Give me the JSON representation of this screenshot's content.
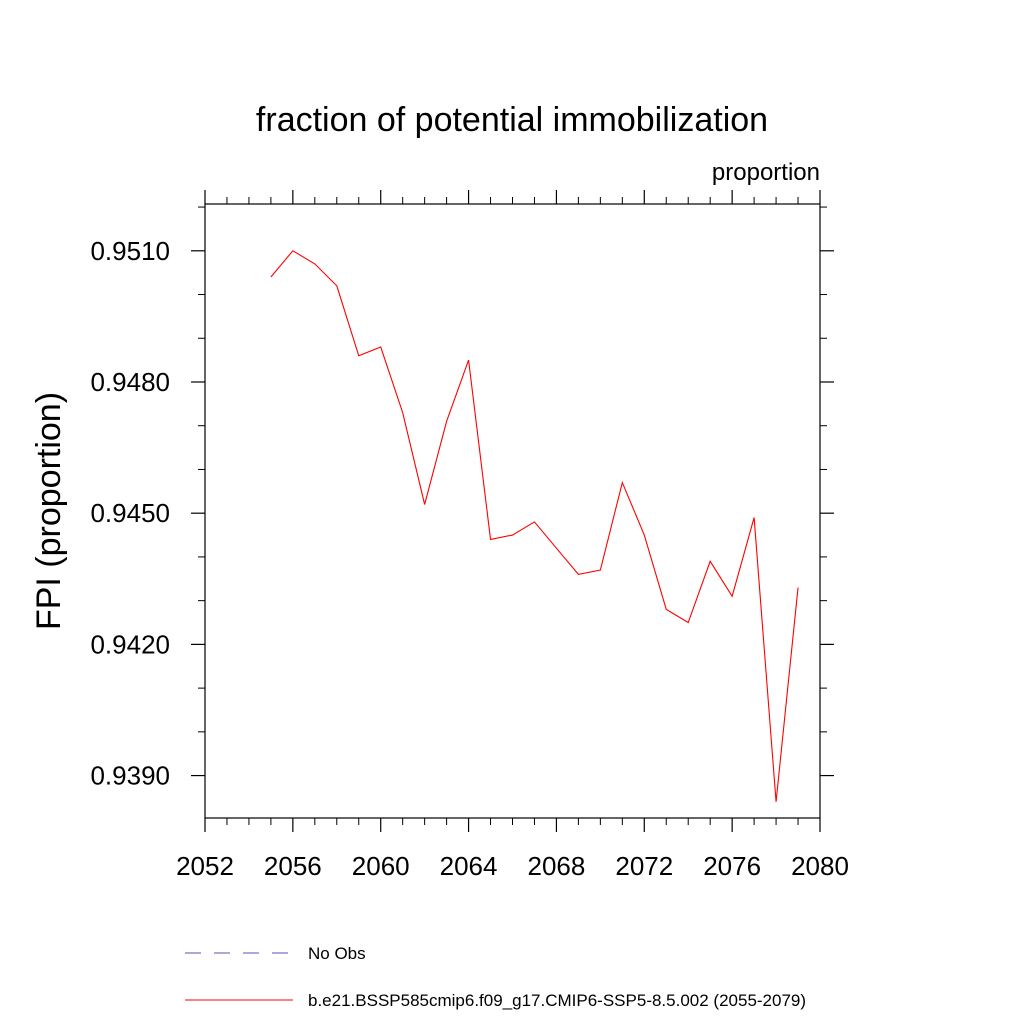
{
  "chart_data": {
    "type": "line",
    "title": "fraction of potential immobilization",
    "units_label": "proportion",
    "xlabel": "",
    "ylabel": "FPI  (proportion)",
    "xlim": [
      2052,
      2080
    ],
    "ylim": [
      0.93803,
      0.95207
    ],
    "x_ticks": [
      2052,
      2056,
      2060,
      2064,
      2068,
      2072,
      2076,
      2080
    ],
    "y_ticks": [
      0.939,
      0.942,
      0.945,
      0.948,
      0.951
    ],
    "y_tick_labels": [
      "0.9390",
      "0.9420",
      "0.9450",
      "0.9480",
      "0.9510"
    ],
    "series": [
      {
        "name": "b.e21.BSSP585cmip6.f09_g17.CMIP6-SSP5-8.5.002 (2055-2079)",
        "color": "#ff0000",
        "style": "solid",
        "x": [
          2055,
          2056,
          2057,
          2058,
          2059,
          2060,
          2061,
          2062,
          2063,
          2064,
          2065,
          2066,
          2067,
          2068,
          2069,
          2070,
          2071,
          2072,
          2073,
          2074,
          2075,
          2076,
          2077,
          2078,
          2079
        ],
        "y": [
          0.9504,
          0.951,
          0.9507,
          0.9502,
          0.9486,
          0.9488,
          0.9473,
          0.9452,
          0.9471,
          0.9485,
          0.9444,
          0.9445,
          0.9448,
          0.9442,
          0.9436,
          0.9437,
          0.9457,
          0.9445,
          0.9428,
          0.9425,
          0.9439,
          0.9431,
          0.9449,
          0.9384,
          0.9433
        ]
      }
    ],
    "legend": [
      {
        "label": "No Obs",
        "color": "#5a50b4",
        "style": "dashed"
      },
      {
        "label": "b.e21.BSSP585cmip6.f09_g17.CMIP6-SSP5-8.5.002 (2055-2079)",
        "color": "#ff0000",
        "style": "solid"
      }
    ]
  }
}
